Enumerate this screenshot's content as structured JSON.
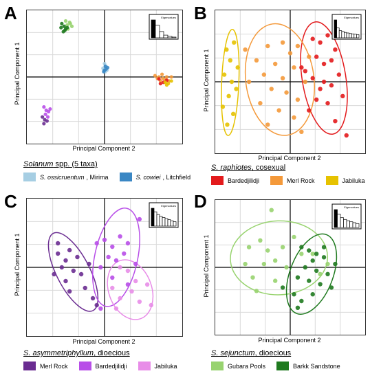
{
  "panels": [
    {
      "letter": "A",
      "xlabel": "Principal Component 2",
      "ylabel": "Principal Component 1",
      "title_species": "Solanum",
      "title_rest": " spp. (5 taxa)",
      "eigen_label": "Eigenvalues",
      "legend": [
        {
          "italic": "S. ossicruentum",
          "rest": ", Mirima",
          "color": "#a6cee3"
        },
        {
          "italic": "S. cowiei",
          "rest": ", Litchfield",
          "color": "#3a87c4"
        }
      ]
    },
    {
      "letter": "B",
      "xlabel": "Principal Component 2",
      "ylabel": "Principal Component 1",
      "title_species": "S. raphiotes",
      "title_rest": ", cosexual",
      "eigen_label": "Eigenvalues",
      "legend": [
        {
          "italic": "",
          "rest": "Bardedjilidji",
          "color": "#e31a1c"
        },
        {
          "italic": "",
          "rest": "Merl Rock",
          "color": "#f4993a"
        },
        {
          "italic": "",
          "rest": "Jabiluka",
          "color": "#e6c200"
        }
      ]
    },
    {
      "letter": "C",
      "xlabel": "Principal Component 2",
      "ylabel": "Principal Component 1",
      "title_species": "S. asymmetriphyllum",
      "title_rest": ", dioecious",
      "eigen_label": "Eigenvalues",
      "legend": [
        {
          "italic": "",
          "rest": "Merl Rock",
          "color": "#6a2c91"
        },
        {
          "italic": "",
          "rest": "Bardedjilidji",
          "color": "#b84ee8"
        },
        {
          "italic": "",
          "rest": "Jabiluka",
          "color": "#e88de8"
        }
      ]
    },
    {
      "letter": "D",
      "xlabel": "Principal Component 2",
      "ylabel": "Principal Component 1",
      "title_species": "S. sejunctum",
      "title_rest": ", dioecious",
      "eigen_label": "Eigenvalues",
      "legend": [
        {
          "italic": "",
          "rest": "Gubara Pools",
          "color": "#98d36f"
        },
        {
          "italic": "",
          "rest": "Barkk Sandstone",
          "color": "#1f7a1f"
        }
      ]
    }
  ],
  "chart_data": [
    {
      "type": "scatter",
      "xlabel": "Principal Component 2",
      "ylabel": "Principal Component 1",
      "xlim": [
        -1,
        1
      ],
      "ylim": [
        -1,
        1
      ],
      "eigenvalues": [
        1.0,
        0.7,
        0.35,
        0.15,
        0.08,
        0.04
      ],
      "series": [
        {
          "name": "S. ossicruentum, Mirima",
          "color": "#a6cee3",
          "points": [
            [
              0.0,
              0.2
            ],
            [
              -0.02,
              0.13
            ],
            [
              0.02,
              0.16
            ],
            [
              0.03,
              0.1
            ],
            [
              0.01,
              0.08
            ],
            [
              -0.01,
              0.11
            ]
          ]
        },
        {
          "name": "S. cowiei, Litchfield",
          "color": "#3a87c4",
          "points": [
            [
              0.02,
              0.12
            ],
            [
              0.0,
              0.1
            ],
            [
              0.04,
              0.14
            ],
            [
              0.01,
              0.16
            ],
            [
              -0.01,
              0.08
            ]
          ]
        },
        {
          "name": "cluster-green-light",
          "color": "#98d36f",
          "points": [
            [
              -0.5,
              0.84
            ],
            [
              -0.48,
              0.78
            ],
            [
              -0.45,
              0.82
            ],
            [
              -0.42,
              0.76
            ],
            [
              -0.47,
              0.72
            ],
            [
              -0.44,
              0.8
            ]
          ]
        },
        {
          "name": "cluster-green-dark",
          "color": "#1f7a1f",
          "points": [
            [
              -0.55,
              0.8
            ],
            [
              -0.52,
              0.76
            ],
            [
              -0.5,
              0.72
            ],
            [
              -0.53,
              0.68
            ],
            [
              -0.48,
              0.74
            ],
            [
              -0.56,
              0.74
            ],
            [
              -0.51,
              0.7
            ]
          ]
        },
        {
          "name": "cluster-orange",
          "color": "#f4993a",
          "points": [
            [
              0.65,
              0.02
            ],
            [
              0.7,
              0.0
            ],
            [
              0.75,
              -0.02
            ],
            [
              0.8,
              0.0
            ],
            [
              0.72,
              -0.06
            ],
            [
              0.78,
              -0.04
            ],
            [
              0.68,
              -0.02
            ],
            [
              0.83,
              -0.06
            ],
            [
              0.74,
              0.04
            ],
            [
              0.86,
              0.0
            ]
          ]
        },
        {
          "name": "cluster-red",
          "color": "#e31a1c",
          "points": [
            [
              0.7,
              -0.03
            ],
            [
              0.76,
              -0.08
            ],
            [
              0.8,
              -0.05
            ],
            [
              0.72,
              -0.1
            ]
          ]
        },
        {
          "name": "cluster-yellow",
          "color": "#e6c200",
          "points": [
            [
              0.78,
              -0.08
            ],
            [
              0.82,
              -0.1
            ],
            [
              0.86,
              -0.06
            ],
            [
              0.8,
              -0.12
            ]
          ]
        },
        {
          "name": "cluster-purple-light",
          "color": "#b84ee8",
          "points": [
            [
              -0.78,
              -0.45
            ],
            [
              -0.75,
              -0.5
            ],
            [
              -0.72,
              -0.52
            ],
            [
              -0.76,
              -0.56
            ],
            [
              -0.73,
              -0.6
            ],
            [
              -0.7,
              -0.48
            ]
          ]
        },
        {
          "name": "cluster-purple-dark",
          "color": "#6a2c91",
          "points": [
            [
              -0.8,
              -0.6
            ],
            [
              -0.77,
              -0.64
            ],
            [
              -0.74,
              -0.66
            ],
            [
              -0.78,
              -0.7
            ]
          ]
        }
      ]
    },
    {
      "type": "scatter",
      "xlabel": "Principal Component 2",
      "ylabel": "Principal Component 1",
      "xlim": [
        -1,
        1
      ],
      "ylim": [
        -1,
        1
      ],
      "eigenvalues": [
        1.0,
        0.55,
        0.4,
        0.35,
        0.3,
        0.27,
        0.24,
        0.22,
        0.2,
        0.18
      ],
      "series": [
        {
          "name": "Bardedjilidji",
          "color": "#e31a1c",
          "points": [
            [
              0.3,
              0.6
            ],
            [
              0.4,
              0.55
            ],
            [
              0.5,
              0.65
            ],
            [
              0.6,
              0.45
            ],
            [
              0.35,
              0.35
            ],
            [
              0.45,
              0.25
            ],
            [
              0.55,
              0.3
            ],
            [
              0.2,
              0.15
            ],
            [
              0.3,
              0.05
            ],
            [
              0.45,
              0.0
            ],
            [
              0.55,
              -0.05
            ],
            [
              0.65,
              0.1
            ],
            [
              0.7,
              -0.2
            ],
            [
              0.5,
              -0.3
            ],
            [
              0.35,
              -0.25
            ],
            [
              0.25,
              -0.4
            ],
            [
              0.6,
              -0.55
            ],
            [
              0.75,
              -0.75
            ],
            [
              0.4,
              -0.1
            ],
            [
              0.15,
              0.2
            ]
          ]
        },
        {
          "name": "Merl Rock",
          "color": "#f4993a",
          "points": [
            [
              -0.3,
              0.5
            ],
            [
              -0.1,
              0.55
            ],
            [
              0.0,
              0.4
            ],
            [
              0.1,
              0.5
            ],
            [
              -0.45,
              0.3
            ],
            [
              -0.2,
              0.25
            ],
            [
              -0.35,
              0.1
            ],
            [
              0.05,
              0.2
            ],
            [
              -0.1,
              0.05
            ],
            [
              0.2,
              0.0
            ],
            [
              -0.25,
              -0.1
            ],
            [
              -0.05,
              -0.15
            ],
            [
              0.1,
              -0.25
            ],
            [
              -0.4,
              -0.3
            ],
            [
              -0.15,
              -0.4
            ],
            [
              0.05,
              -0.5
            ],
            [
              -0.3,
              -0.6
            ],
            [
              0.15,
              -0.7
            ],
            [
              -0.55,
              0.0
            ],
            [
              0.25,
              0.35
            ],
            [
              -0.6,
              0.45
            ]
          ]
        },
        {
          "name": "Jabiluka",
          "color": "#e6c200",
          "points": [
            [
              -0.85,
              0.45
            ],
            [
              -0.8,
              0.3
            ],
            [
              -0.75,
              0.55
            ],
            [
              -0.88,
              0.1
            ],
            [
              -0.78,
              0.0
            ],
            [
              -0.82,
              -0.2
            ],
            [
              -0.9,
              -0.35
            ],
            [
              -0.76,
              -0.45
            ],
            [
              -0.84,
              -0.6
            ],
            [
              -0.7,
              0.2
            ],
            [
              -0.72,
              -0.1
            ]
          ]
        }
      ]
    },
    {
      "type": "scatter",
      "xlabel": "Principal Component 2",
      "ylabel": "Principal Component 1",
      "xlim": [
        -1,
        1
      ],
      "ylim": [
        -1,
        1
      ],
      "eigenvalues": [
        1.0,
        0.8,
        0.65,
        0.55,
        0.48,
        0.42,
        0.36,
        0.3,
        0.25
      ],
      "series": [
        {
          "name": "Merl Rock",
          "color": "#6a2c91",
          "points": [
            [
              -0.6,
              0.2
            ],
            [
              -0.5,
              0.1
            ],
            [
              -0.45,
              0.25
            ],
            [
              -0.55,
              0.0
            ],
            [
              -0.4,
              -0.05
            ],
            [
              -0.35,
              0.15
            ],
            [
              -0.65,
              -0.1
            ],
            [
              -0.5,
              -0.2
            ],
            [
              -0.3,
              -0.1
            ],
            [
              -0.45,
              -0.35
            ],
            [
              -0.2,
              0.05
            ],
            [
              -0.25,
              -0.3
            ],
            [
              -0.15,
              -0.45
            ],
            [
              -0.1,
              -0.55
            ],
            [
              -0.6,
              0.35
            ]
          ]
        },
        {
          "name": "Bardedjilidji",
          "color": "#b84ee8",
          "points": [
            [
              -0.1,
              0.35
            ],
            [
              0.0,
              0.4
            ],
            [
              0.1,
              0.3
            ],
            [
              0.2,
              0.45
            ],
            [
              0.3,
              0.35
            ],
            [
              0.05,
              0.15
            ],
            [
              0.15,
              0.1
            ],
            [
              0.25,
              0.2
            ],
            [
              0.4,
              0.05
            ],
            [
              -0.05,
              0.0
            ],
            [
              0.1,
              -0.15
            ],
            [
              0.3,
              -0.25
            ],
            [
              0.45,
              0.7
            ],
            [
              -0.05,
              -0.6
            ]
          ]
        },
        {
          "name": "Jabiluka",
          "color": "#e88de8",
          "points": [
            [
              0.2,
              0.0
            ],
            [
              0.3,
              -0.05
            ],
            [
              0.1,
              -0.3
            ],
            [
              0.35,
              -0.35
            ],
            [
              0.45,
              -0.5
            ],
            [
              0.2,
              -0.45
            ],
            [
              0.55,
              -0.25
            ],
            [
              0.6,
              -0.55
            ],
            [
              0.15,
              -0.6
            ],
            [
              0.4,
              -0.2
            ]
          ]
        }
      ]
    },
    {
      "type": "scatter",
      "xlabel": "Principal Component 2",
      "ylabel": "Principal Component 1",
      "xlim": [
        -1,
        1
      ],
      "ylim": [
        -1,
        1
      ],
      "eigenvalues": [
        1.0,
        0.75,
        0.55,
        0.45,
        0.38,
        0.32,
        0.27,
        0.22
      ],
      "series": [
        {
          "name": "Gubara Pools",
          "color": "#98d36f",
          "points": [
            [
              -0.25,
              0.85
            ],
            [
              -0.4,
              0.4
            ],
            [
              -0.55,
              0.3
            ],
            [
              -0.3,
              0.25
            ],
            [
              -0.6,
              0.05
            ],
            [
              -0.35,
              0.05
            ],
            [
              -0.2,
              0.1
            ],
            [
              -0.1,
              0.3
            ],
            [
              0.05,
              0.45
            ],
            [
              0.15,
              0.2
            ],
            [
              -0.5,
              -0.15
            ],
            [
              -0.2,
              -0.2
            ],
            [
              0.3,
              0.2
            ],
            [
              -0.05,
              0.0
            ],
            [
              0.4,
              -0.1
            ],
            [
              -0.45,
              -0.35
            ],
            [
              0.5,
              0.05
            ]
          ]
        },
        {
          "name": "Barkk Sandstone",
          "color": "#1f7a1f",
          "points": [
            [
              0.15,
              0.3
            ],
            [
              0.25,
              0.25
            ],
            [
              0.35,
              0.2
            ],
            [
              0.3,
              0.1
            ],
            [
              0.45,
              0.15
            ],
            [
              0.2,
              0.0
            ],
            [
              0.35,
              -0.05
            ],
            [
              0.5,
              -0.1
            ],
            [
              0.1,
              -0.15
            ],
            [
              0.25,
              -0.2
            ],
            [
              0.4,
              -0.25
            ],
            [
              0.55,
              -0.3
            ],
            [
              0.05,
              -0.4
            ],
            [
              0.15,
              -0.5
            ],
            [
              0.3,
              -0.4
            ],
            [
              0.45,
              0.3
            ],
            [
              0.6,
              0.05
            ],
            [
              -0.1,
              -0.3
            ],
            [
              0.1,
              -0.6
            ]
          ]
        }
      ]
    }
  ]
}
